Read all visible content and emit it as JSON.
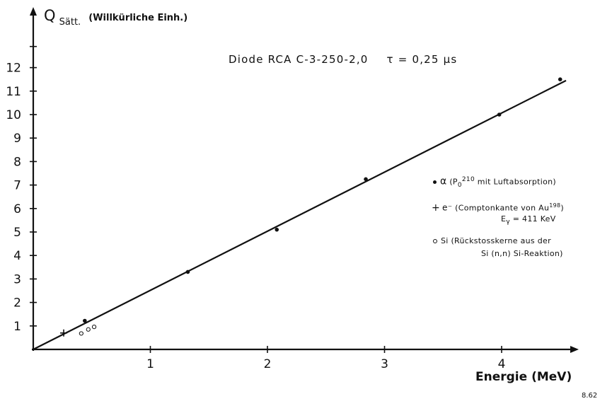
{
  "chart_data": {
    "type": "scatter",
    "title": "Diode RCA C-3-250-2,0",
    "subtitle": "τ = 0,25 µs",
    "ylabel_symbol": "Q",
    "ylabel_sub": "Sätt.",
    "ylabel_unit": "(Willkürliche Einh.)",
    "xlabel": "Energie (MeV)",
    "figure_id": "8.62",
    "xlim": [
      0,
      4.6
    ],
    "ylim": [
      0,
      13.5
    ],
    "xticks": [
      1,
      2,
      3,
      4
    ],
    "yticks": [
      1,
      2,
      3,
      4,
      5,
      6,
      7,
      8,
      9,
      10,
      11,
      12
    ],
    "fit_line": {
      "x": [
        0,
        4.55
      ],
      "y": [
        0,
        11.45
      ]
    },
    "series": [
      {
        "marker": "dot",
        "legend_symbol": "α",
        "legend_text": "(P",
        "legend_sub": "0",
        "legend_sup": "210",
        "legend_text2": " mit Luftabsorption)",
        "x": [
          0.44,
          1.32,
          2.08,
          2.84,
          3.98,
          4.5
        ],
        "y": [
          1.22,
          3.3,
          5.1,
          7.25,
          10.0,
          11.5
        ]
      },
      {
        "marker": "plus",
        "legend_symbol": "e⁻",
        "legend_text": "(Comptonkante von Au",
        "legend_sup": "198",
        "legend_text2": ")",
        "legend_line2": "E",
        "legend_line2_sub": "γ",
        "legend_line2_rest": " = 411 KeV",
        "x": [
          0.26
        ],
        "y": [
          0.7
        ]
      },
      {
        "marker": "circle",
        "legend_symbol": "Si",
        "legend_text": "(Rückstosskerne aus der",
        "legend_line2": "Si (n,n) Si-Reaktion)",
        "x": [
          0.41,
          0.47,
          0.52
        ],
        "y": [
          0.68,
          0.85,
          0.96
        ]
      }
    ]
  }
}
